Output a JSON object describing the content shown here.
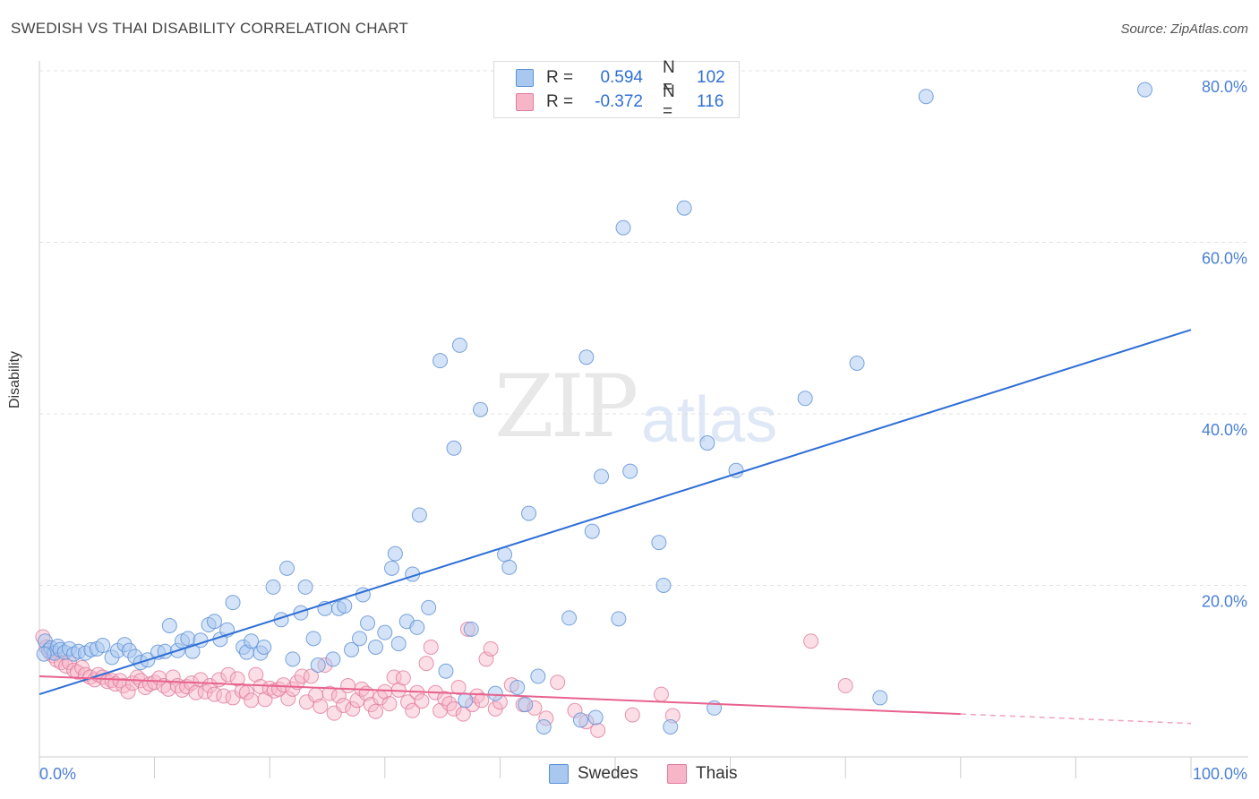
{
  "title": "SWEDISH VS THAI DISABILITY CORRELATION CHART",
  "source": "Source: ZipAtlas.com",
  "watermark_zip": "ZIP",
  "watermark_atlas": "atlas",
  "colors": {
    "swedes_fill": "#a9c8f0",
    "swedes_stroke": "#5b8fd6",
    "swedes_line": "#2f6fd6",
    "thais_fill": "#f7b6c8",
    "thais_stroke": "#e07a9c",
    "thais_line": "#e8628e",
    "tick_text": "#4a7fd4"
  },
  "legend": {
    "rows": [
      {
        "r_label": "R =",
        "r_value": "0.594",
        "n_label": "N =",
        "n_value": "102"
      },
      {
        "r_label": "R =",
        "r_value": "-0.372",
        "n_label": "N =",
        "n_value": "116"
      }
    ]
  },
  "bottom_legend": {
    "swedes": "Swedes",
    "thais": "Thais"
  },
  "chart_data": {
    "type": "scatter",
    "title": "SWEDISH VS THAI DISABILITY CORRELATION CHART",
    "xlabel": "",
    "ylabel": "Disability",
    "xlim": [
      0,
      100
    ],
    "ylim": [
      0,
      80
    ],
    "x_tick_labels": [
      "0.0%",
      "100.0%"
    ],
    "y_ticks": [
      20,
      40,
      60,
      80
    ],
    "y_tick_labels": [
      "20.0%",
      "40.0%",
      "60.0%",
      "80.0%"
    ],
    "grid": true,
    "legend_placement": "top-center",
    "series": [
      {
        "name": "Swedes",
        "r": 0.594,
        "n": 102,
        "trend": {
          "x": [
            0,
            100
          ],
          "y": [
            7.3,
            49.8
          ]
        },
        "points": [
          [
            0.5,
            13.5
          ],
          [
            0.8,
            12.4
          ],
          [
            1.0,
            12.7
          ],
          [
            1.3,
            12.1
          ],
          [
            1.6,
            12.9
          ],
          [
            1.8,
            12.5
          ],
          [
            2.2,
            12.2
          ],
          [
            2.6,
            12.6
          ],
          [
            3.0,
            12.0
          ],
          [
            3.4,
            12.3
          ],
          [
            4.0,
            12.1
          ],
          [
            4.5,
            12.5
          ],
          [
            5.0,
            12.6
          ],
          [
            5.5,
            13.0
          ],
          [
            6.3,
            11.6
          ],
          [
            6.8,
            12.4
          ],
          [
            7.4,
            13.1
          ],
          [
            7.8,
            12.4
          ],
          [
            8.3,
            11.7
          ],
          [
            8.8,
            11.0
          ],
          [
            9.4,
            11.3
          ],
          [
            10.3,
            12.2
          ],
          [
            10.9,
            12.3
          ],
          [
            11.3,
            15.3
          ],
          [
            12.0,
            12.4
          ],
          [
            12.4,
            13.5
          ],
          [
            12.9,
            13.8
          ],
          [
            13.3,
            12.3
          ],
          [
            14.0,
            13.6
          ],
          [
            14.7,
            15.4
          ],
          [
            15.2,
            15.8
          ],
          [
            15.7,
            13.7
          ],
          [
            16.3,
            14.8
          ],
          [
            16.8,
            18.0
          ],
          [
            17.7,
            12.8
          ],
          [
            18.0,
            12.2
          ],
          [
            18.4,
            13.5
          ],
          [
            19.2,
            12.1
          ],
          [
            19.5,
            12.8
          ],
          [
            20.3,
            19.8
          ],
          [
            21.0,
            16.0
          ],
          [
            21.5,
            22.0
          ],
          [
            22.0,
            11.4
          ],
          [
            22.7,
            16.8
          ],
          [
            23.1,
            19.8
          ],
          [
            23.8,
            13.8
          ],
          [
            24.2,
            10.7
          ],
          [
            24.8,
            17.3
          ],
          [
            25.5,
            11.4
          ],
          [
            26.0,
            17.3
          ],
          [
            26.5,
            17.6
          ],
          [
            27.1,
            12.5
          ],
          [
            27.8,
            13.8
          ],
          [
            28.1,
            18.9
          ],
          [
            28.5,
            15.6
          ],
          [
            29.2,
            12.8
          ],
          [
            30.0,
            14.5
          ],
          [
            30.6,
            22.0
          ],
          [
            30.9,
            23.7
          ],
          [
            31.2,
            13.2
          ],
          [
            31.9,
            15.8
          ],
          [
            32.4,
            21.3
          ],
          [
            32.8,
            15.1
          ],
          [
            33.0,
            28.2
          ],
          [
            33.8,
            17.4
          ],
          [
            34.8,
            46.2
          ],
          [
            35.3,
            10.0
          ],
          [
            36.0,
            36.0
          ],
          [
            36.5,
            48.0
          ],
          [
            37.0,
            6.6
          ],
          [
            37.5,
            14.9
          ],
          [
            38.3,
            40.5
          ],
          [
            39.6,
            7.4
          ],
          [
            40.4,
            23.6
          ],
          [
            40.8,
            22.1
          ],
          [
            41.5,
            8.1
          ],
          [
            42.2,
            6.1
          ],
          [
            42.5,
            28.4
          ],
          [
            43.3,
            9.4
          ],
          [
            43.8,
            3.5
          ],
          [
            46.0,
            16.2
          ],
          [
            47.0,
            4.3
          ],
          [
            47.5,
            46.6
          ],
          [
            48.0,
            26.3
          ],
          [
            48.3,
            4.6
          ],
          [
            48.8,
            32.7
          ],
          [
            50.3,
            16.1
          ],
          [
            50.7,
            61.7
          ],
          [
            51.3,
            33.3
          ],
          [
            53.8,
            25.0
          ],
          [
            54.2,
            20.0
          ],
          [
            54.8,
            3.5
          ],
          [
            56.0,
            64.0
          ],
          [
            58.0,
            36.6
          ],
          [
            58.6,
            5.7
          ],
          [
            60.5,
            33.4
          ],
          [
            66.5,
            41.8
          ],
          [
            71.0,
            45.9
          ],
          [
            73.0,
            6.9
          ],
          [
            77.0,
            77.0
          ],
          [
            96.0,
            77.8
          ],
          [
            0.4,
            12.0
          ]
        ]
      },
      {
        "name": "Thais",
        "r": -0.372,
        "n": 116,
        "trend": {
          "x": [
            0,
            80
          ],
          "y": [
            9.4,
            5.0
          ]
        },
        "trend_dashed": {
          "x": [
            80,
            100
          ],
          "y": [
            5.0,
            3.9
          ]
        },
        "points": [
          [
            0.3,
            14.0
          ],
          [
            0.6,
            12.8
          ],
          [
            0.9,
            12.2
          ],
          [
            1.2,
            11.8
          ],
          [
            1.5,
            11.3
          ],
          [
            1.9,
            11.0
          ],
          [
            2.3,
            10.6
          ],
          [
            2.6,
            11.0
          ],
          [
            3.0,
            10.1
          ],
          [
            3.3,
            9.9
          ],
          [
            3.7,
            10.4
          ],
          [
            4.0,
            9.6
          ],
          [
            4.4,
            9.3
          ],
          [
            4.8,
            9.0
          ],
          [
            5.1,
            9.6
          ],
          [
            5.5,
            9.3
          ],
          [
            5.9,
            8.8
          ],
          [
            6.3,
            8.9
          ],
          [
            6.6,
            8.5
          ],
          [
            7.0,
            8.9
          ],
          [
            7.3,
            8.3
          ],
          [
            7.7,
            7.6
          ],
          [
            8.1,
            8.6
          ],
          [
            8.5,
            9.3
          ],
          [
            8.8,
            8.9
          ],
          [
            9.2,
            8.1
          ],
          [
            9.6,
            8.5
          ],
          [
            10.0,
            8.7
          ],
          [
            10.4,
            9.2
          ],
          [
            10.8,
            8.3
          ],
          [
            11.2,
            7.9
          ],
          [
            11.6,
            9.3
          ],
          [
            12.0,
            8.3
          ],
          [
            12.4,
            7.8
          ],
          [
            12.8,
            8.2
          ],
          [
            13.2,
            8.6
          ],
          [
            13.6,
            7.5
          ],
          [
            14.0,
            9.0
          ],
          [
            14.4,
            7.6
          ],
          [
            14.8,
            8.3
          ],
          [
            15.2,
            7.3
          ],
          [
            15.6,
            9.0
          ],
          [
            16.0,
            7.1
          ],
          [
            16.4,
            9.6
          ],
          [
            16.8,
            6.9
          ],
          [
            17.2,
            9.1
          ],
          [
            17.6,
            7.7
          ],
          [
            18.0,
            7.5
          ],
          [
            18.4,
            6.6
          ],
          [
            18.8,
            9.6
          ],
          [
            19.2,
            8.2
          ],
          [
            19.6,
            6.7
          ],
          [
            20.0,
            8.0
          ],
          [
            20.4,
            7.7
          ],
          [
            20.8,
            7.9
          ],
          [
            21.2,
            8.4
          ],
          [
            21.6,
            6.8
          ],
          [
            22.0,
            7.9
          ],
          [
            22.4,
            8.7
          ],
          [
            22.8,
            9.4
          ],
          [
            23.2,
            6.4
          ],
          [
            23.6,
            9.4
          ],
          [
            24.0,
            7.2
          ],
          [
            24.4,
            5.9
          ],
          [
            24.8,
            10.7
          ],
          [
            25.2,
            7.4
          ],
          [
            25.6,
            5.1
          ],
          [
            26.0,
            7.1
          ],
          [
            26.4,
            6.0
          ],
          [
            26.8,
            8.3
          ],
          [
            27.2,
            5.6
          ],
          [
            27.6,
            6.6
          ],
          [
            28.0,
            7.9
          ],
          [
            28.4,
            7.4
          ],
          [
            28.8,
            6.1
          ],
          [
            29.2,
            5.3
          ],
          [
            29.6,
            6.9
          ],
          [
            30.0,
            7.6
          ],
          [
            30.4,
            6.2
          ],
          [
            30.8,
            9.3
          ],
          [
            31.2,
            7.8
          ],
          [
            31.6,
            9.2
          ],
          [
            32.0,
            6.4
          ],
          [
            32.4,
            5.4
          ],
          [
            32.8,
            7.5
          ],
          [
            33.2,
            6.5
          ],
          [
            33.6,
            10.9
          ],
          [
            34.0,
            12.8
          ],
          [
            34.4,
            7.5
          ],
          [
            34.8,
            5.4
          ],
          [
            35.2,
            6.8
          ],
          [
            35.6,
            6.2
          ],
          [
            36.0,
            5.6
          ],
          [
            36.4,
            8.1
          ],
          [
            36.8,
            5.0
          ],
          [
            37.2,
            14.9
          ],
          [
            37.6,
            6.1
          ],
          [
            38.0,
            7.1
          ],
          [
            38.4,
            6.6
          ],
          [
            38.8,
            11.4
          ],
          [
            39.2,
            12.6
          ],
          [
            39.6,
            5.6
          ],
          [
            40.0,
            6.4
          ],
          [
            41.0,
            8.4
          ],
          [
            42.0,
            6.1
          ],
          [
            43.0,
            5.7
          ],
          [
            44.0,
            4.5
          ],
          [
            45.0,
            8.7
          ],
          [
            46.5,
            5.4
          ],
          [
            47.5,
            4.1
          ],
          [
            48.5,
            3.1
          ],
          [
            51.5,
            4.9
          ],
          [
            54.0,
            7.3
          ],
          [
            55.0,
            4.8
          ],
          [
            67.0,
            13.5
          ],
          [
            70.0,
            8.3
          ]
        ]
      }
    ]
  }
}
